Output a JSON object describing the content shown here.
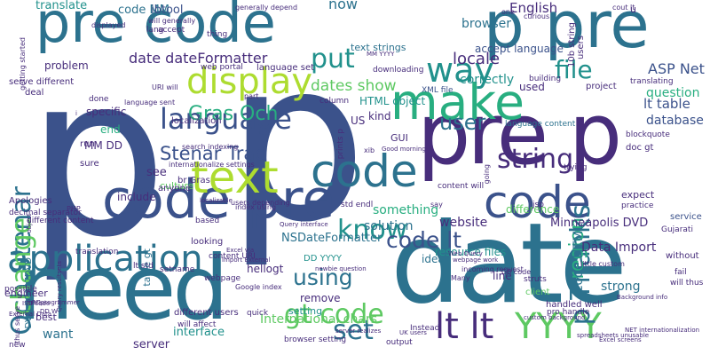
{
  "word_cloud": {
    "background": "#ffffff",
    "palette": [
      "#440154",
      "#472d7b",
      "#3b528b",
      "#2c728e",
      "#21918c",
      "#28ae80",
      "#5ec962",
      "#addc30",
      "#fde725"
    ],
    "words": [
      {
        "text": "p",
        "color": "#3b528b",
        "vertical": false
      },
      {
        "text": "p",
        "color": "#3b528b",
        "vertical": false
      },
      {
        "text": "date",
        "color": "#2c728e",
        "vertical": false
      },
      {
        "text": "need",
        "color": "#2c728e",
        "vertical": false
      },
      {
        "text": "pre code",
        "color": "#2c728e",
        "vertical": false
      },
      {
        "text": "pre p",
        "color": "#472d7b",
        "vertical": false
      },
      {
        "text": "code pre",
        "color": "#3b528b",
        "vertical": false
      },
      {
        "text": "p pre",
        "color": "#2c728e",
        "vertical": false
      },
      {
        "text": "text",
        "color": "#addc30",
        "vertical": false
      },
      {
        "text": "application",
        "color": "#2c728e",
        "vertical": false
      },
      {
        "text": "make",
        "color": "#28ae80",
        "vertical": false
      },
      {
        "text": "display",
        "color": "#addc30",
        "vertical": false
      },
      {
        "text": "language",
        "color": "#3b528b",
        "vertical": false
      },
      {
        "text": "code",
        "color": "#3b528b",
        "vertical": false
      },
      {
        "text": "lt lt",
        "color": "#472d7b",
        "vertical": false
      },
      {
        "text": "YYYY",
        "color": "#5ec962",
        "vertical": false
      },
      {
        "text": "Och Stenar",
        "color": "#2c728e",
        "vertical": true
      },
      {
        "text": "string",
        "color": "#472d7b",
        "vertical": false
      },
      {
        "text": "know",
        "color": "#21918c",
        "vertical": false
      },
      {
        "text": "way",
        "color": "#21918c",
        "vertical": false
      },
      {
        "text": "change",
        "color": "#5ec962",
        "vertical": true
      },
      {
        "text": "p Thanks",
        "color": "#2c728e",
        "vertical": true
      },
      {
        "text": "put",
        "color": "#21918c",
        "vertical": false
      },
      {
        "text": "gt code",
        "color": "#5ec962",
        "vertical": false
      },
      {
        "text": "set",
        "color": "#2c728e",
        "vertical": false
      },
      {
        "text": "code",
        "color": "#2c728e",
        "vertical": false
      },
      {
        "text": "using",
        "color": "#2c728e",
        "vertical": false
      },
      {
        "text": "code lt",
        "color": "#3b528b",
        "vertical": false
      },
      {
        "text": "Gras Och",
        "color": "#28ae80",
        "vertical": false
      },
      {
        "text": "Stenar Trad",
        "color": "#3b528b",
        "vertical": false
      },
      {
        "text": "file",
        "color": "#21918c",
        "vertical": false
      },
      {
        "text": "user",
        "color": "#2c728e",
        "vertical": false
      },
      {
        "text": "region",
        "color": "#28ae80",
        "vertical": true
      },
      {
        "text": "ASP Net",
        "color": "#3b528b",
        "vertical": false
      },
      {
        "text": "lt table",
        "color": "#3b528b",
        "vertical": false
      },
      {
        "text": "date dateFormatter",
        "color": "#472d7b",
        "vertical": false
      },
      {
        "text": "translate",
        "color": "#21918c",
        "vertical": false
      },
      {
        "text": "English",
        "color": "#472d7b",
        "vertical": false
      },
      {
        "text": "locale",
        "color": "#472d7b",
        "vertical": false
      },
      {
        "text": "correctly",
        "color": "#21918c",
        "vertical": false
      },
      {
        "text": "code MM",
        "color": "#2c728e",
        "vertical": false
      },
      {
        "text": "ibtool",
        "color": "#3b528b",
        "vertical": false
      },
      {
        "text": "now",
        "color": "#2c728e",
        "vertical": false
      },
      {
        "text": "browser",
        "color": "#2c728e",
        "vertical": false
      },
      {
        "text": "dates show",
        "color": "#5ec962",
        "vertical": false
      },
      {
        "text": "problem",
        "color": "#472d7b",
        "vertical": false
      },
      {
        "text": "specific",
        "color": "#472d7b",
        "vertical": false
      },
      {
        "text": "end",
        "color": "#28ae80",
        "vertical": false
      },
      {
        "text": "MM DD",
        "color": "#472d7b",
        "vertical": false
      },
      {
        "text": "include",
        "color": "#472d7b",
        "vertical": false
      },
      {
        "text": "br Gras",
        "color": "#472d7b",
        "vertical": false
      },
      {
        "text": "something",
        "color": "#28ae80",
        "vertical": false
      },
      {
        "text": "solution",
        "color": "#2c728e",
        "vertical": false
      },
      {
        "text": "website",
        "color": "#472d7b",
        "vertical": false
      },
      {
        "text": "question",
        "color": "#28ae80",
        "vertical": false
      },
      {
        "text": "database",
        "color": "#3b528b",
        "vertical": false
      },
      {
        "text": "code HTML",
        "color": "#2c728e",
        "vertical": true
      },
      {
        "text": "Minneapolis DVD",
        "color": "#472d7b",
        "vertical": false
      },
      {
        "text": "Data Import",
        "color": "#472d7b",
        "vertical": false
      },
      {
        "text": "NSDateFormatter",
        "color": "#2c728e",
        "vertical": false
      },
      {
        "text": "DD YYYY",
        "color": "#21918c",
        "vertical": false
      },
      {
        "text": "remove",
        "color": "#472d7b",
        "vertical": false
      },
      {
        "text": "setting",
        "color": "#21918c",
        "vertical": false
      },
      {
        "text": "International chars",
        "color": "#5ec962",
        "vertical": false
      },
      {
        "text": "interface",
        "color": "#21918c",
        "vertical": false
      },
      {
        "text": "DVD G2007DVD",
        "color": "#2c728e",
        "vertical": true
      },
      {
        "text": "table gt",
        "color": "#2c728e",
        "vertical": true
      },
      {
        "text": "want",
        "color": "#2c728e",
        "vertical": false
      },
      {
        "text": "server",
        "color": "#472d7b",
        "vertical": false
      },
      {
        "text": "hellogt",
        "color": "#472d7b",
        "vertical": false
      },
      {
        "text": "kind",
        "color": "#472d7b",
        "vertical": false
      },
      {
        "text": "US",
        "color": "#472d7b",
        "vertical": false
      },
      {
        "text": "HTML object",
        "color": "#21918c",
        "vertical": false
      },
      {
        "text": "difference",
        "color": "#5ec962",
        "vertical": false
      },
      {
        "text": "resource files",
        "color": "#21918c",
        "vertical": false
      },
      {
        "text": "strong",
        "color": "#2c728e",
        "vertical": false
      },
      {
        "text": "line",
        "color": "#472d7b",
        "vertical": false
      },
      {
        "text": "idea",
        "color": "#2c728e",
        "vertical": false
      },
      {
        "text": "used",
        "color": "#472d7b",
        "vertical": false
      },
      {
        "text": "see",
        "color": "#472d7b",
        "vertical": false
      },
      {
        "text": "culture",
        "color": "#5ec962",
        "vertical": false
      },
      {
        "text": "anyone",
        "color": "#472d7b",
        "vertical": false
      },
      {
        "text": "done",
        "color": "#472d7b",
        "vertical": false
      },
      {
        "text": "sure",
        "color": "#472d7b",
        "vertical": false
      },
      {
        "text": "localization",
        "color": "#472d7b",
        "vertical": false
      },
      {
        "text": "expect",
        "color": "#472d7b",
        "vertical": false
      },
      {
        "text": "practice",
        "color": "#472d7b",
        "vertical": false
      },
      {
        "text": "doc gt",
        "color": "#472d7b",
        "vertical": false
      },
      {
        "text": "service",
        "color": "#3b528b",
        "vertical": false
      },
      {
        "text": "fail",
        "color": "#472d7b",
        "vertical": false
      },
      {
        "text": "project",
        "color": "#472d7b",
        "vertical": false
      },
      {
        "text": "translating",
        "color": "#472d7b",
        "vertical": false
      },
      {
        "text": "building",
        "color": "#472d7b",
        "vertical": false
      },
      {
        "text": "accept language",
        "color": "#3b528b",
        "vertical": false
      },
      {
        "text": "text strings",
        "color": "#2c728e",
        "vertical": false
      },
      {
        "text": "XML file",
        "color": "#3b528b",
        "vertical": false
      },
      {
        "text": "language content",
        "color": "#2c728e",
        "vertical": false
      },
      {
        "text": "blockquote",
        "color": "#472d7b",
        "vertical": false
      },
      {
        "text": "Gujarati",
        "color": "#472d7b",
        "vertical": false
      },
      {
        "text": "trying",
        "color": "#472d7b",
        "vertical": false
      },
      {
        "text": "quick",
        "color": "#472d7b",
        "vertical": false
      },
      {
        "text": "looking",
        "color": "#472d7b",
        "vertical": false
      },
      {
        "text": "based",
        "color": "#472d7b",
        "vertical": false
      },
      {
        "text": "different users",
        "color": "#472d7b",
        "vertical": false
      },
      {
        "text": "will affect",
        "color": "#472d7b",
        "vertical": false
      },
      {
        "text": "browser setting",
        "color": "#472d7b",
        "vertical": false
      },
      {
        "text": "Instead",
        "color": "#472d7b",
        "vertical": false
      },
      {
        "text": "output",
        "color": "#472d7b",
        "vertical": false
      },
      {
        "text": "client",
        "color": "#5ec962",
        "vertical": false
      },
      {
        "text": "handled well",
        "color": "#472d7b",
        "vertical": false
      },
      {
        "text": "pro handle",
        "color": "#472d7b",
        "vertical": false
      },
      {
        "text": "without",
        "color": "#472d7b",
        "vertical": false
      },
      {
        "text": "will thus",
        "color": "#472d7b",
        "vertical": false
      },
      {
        "text": "struts",
        "color": "#472d7b",
        "vertical": false
      },
      {
        "text": "web portal",
        "color": "#472d7b",
        "vertical": false
      },
      {
        "text": "language set",
        "color": "#472d7b",
        "vertical": false
      },
      {
        "text": "generally depend",
        "color": "#472d7b",
        "vertical": false
      },
      {
        "text": "will generally",
        "color": "#472d7b",
        "vertical": false
      },
      {
        "text": "thing",
        "color": "#472d7b",
        "vertical": false
      },
      {
        "text": "lang",
        "color": "#472d7b",
        "vertical": false
      },
      {
        "text": "accept",
        "color": "#472d7b",
        "vertical": false
      },
      {
        "text": "displayed",
        "color": "#472d7b",
        "vertical": false
      },
      {
        "text": "one",
        "color": "#472d7b",
        "vertical": false
      },
      {
        "text": "curious",
        "color": "#472d7b",
        "vertical": false
      },
      {
        "text": "serve different",
        "color": "#472d7b",
        "vertical": false
      },
      {
        "text": "deal",
        "color": "#472d7b",
        "vertical": false
      },
      {
        "text": "URI will",
        "color": "#472d7b",
        "vertical": false
      },
      {
        "text": "part",
        "color": "#472d7b",
        "vertical": false
      },
      {
        "text": "column",
        "color": "#472d7b",
        "vertical": false
      },
      {
        "text": "downloading",
        "color": "#472d7b",
        "vertical": false
      },
      {
        "text": "cout lt",
        "color": "#472d7b",
        "vertical": false
      },
      {
        "text": "run",
        "color": "#472d7b",
        "vertical": false
      },
      {
        "text": "translation",
        "color": "#472d7b",
        "vertical": false
      },
      {
        "text": "content URI",
        "color": "#472d7b",
        "vertical": false
      },
      {
        "text": "webpage",
        "color": "#472d7b",
        "vertical": false
      },
      {
        "text": "setname",
        "color": "#472d7b",
        "vertical": false
      },
      {
        "text": "Google index",
        "color": "#472d7b",
        "vertical": false
      },
      {
        "text": "lt std",
        "color": "#472d7b",
        "vertical": false
      },
      {
        "text": "users depending",
        "color": "#472d7b",
        "vertical": false
      },
      {
        "text": "PHP",
        "color": "#472d7b",
        "vertical": false
      },
      {
        "text": "decimal separator",
        "color": "#472d7b",
        "vertical": false
      },
      {
        "text": "different content",
        "color": "#472d7b",
        "vertical": false
      },
      {
        "text": "Apologies",
        "color": "#472d7b",
        "vertical": false
      },
      {
        "text": "engineer",
        "color": "#472d7b",
        "vertical": false
      },
      {
        "text": "best",
        "color": "#472d7b",
        "vertical": false
      },
      {
        "text": "new",
        "color": "#472d7b",
        "vertical": false
      },
      {
        "text": "possible",
        "color": "#472d7b",
        "vertical": false
      },
      {
        "text": "en",
        "color": "#472d7b",
        "vertical": false
      },
      {
        "text": "content will",
        "color": "#472d7b",
        "vertical": false
      },
      {
        "text": "say",
        "color": "#472d7b",
        "vertical": false
      },
      {
        "text": "jsp",
        "color": "#472d7b",
        "vertical": false
      },
      {
        "text": "index using",
        "color": "#472d7b",
        "vertical": false
      },
      {
        "text": "std endl",
        "color": "#472d7b",
        "vertical": false
      },
      {
        "text": "Good morning",
        "color": "#472d7b",
        "vertical": false
      },
      {
        "text": "GUI",
        "color": "#472d7b",
        "vertical": false
      },
      {
        "text": "prints p",
        "color": "#472d7b",
        "vertical": true
      },
      {
        "text": "getting started",
        "color": "#472d7b",
        "vertical": true
      },
      {
        "text": "10b string",
        "color": "#472d7b",
        "vertical": true
      },
      {
        "text": "users",
        "color": "#472d7b",
        "vertical": true
      },
      {
        "text": "xib",
        "color": "#472d7b",
        "vertical": false
      },
      {
        "text": "u",
        "color": "#472d7b",
        "vertical": false
      },
      {
        "text": "language sent",
        "color": "#472d7b",
        "vertical": false
      },
      {
        "text": "search indexing",
        "color": "#472d7b",
        "vertical": false
      },
      {
        "text": "internationalize settings",
        "color": "#472d7b",
        "vertical": false
      },
      {
        "text": "Excel via",
        "color": "#472d7b",
        "vertical": false
      },
      {
        "text": "Import External",
        "color": "#472d7b",
        "vertical": false
      },
      {
        "text": "newbie question",
        "color": "#472d7b",
        "vertical": false
      },
      {
        "text": "custom background",
        "color": "#472d7b",
        "vertical": false
      },
      {
        "text": "spreadsheets unusable",
        "color": "#472d7b",
        "vertical": false
      },
      {
        "text": "NET internationalization",
        "color": "#472d7b",
        "vertical": false
      },
      {
        "text": "Excel screens",
        "color": "#472d7b",
        "vertical": false
      },
      {
        "text": "Background info",
        "color": "#472d7b",
        "vertical": false
      },
      {
        "text": "little custom",
        "color": "#472d7b",
        "vertical": false
      },
      {
        "text": "localizable",
        "color": "#472d7b",
        "vertical": false
      },
      {
        "text": "UK users",
        "color": "#472d7b",
        "vertical": false
      },
      {
        "text": "Many",
        "color": "#472d7b",
        "vertical": false
      },
      {
        "text": "incoming request",
        "color": "#472d7b",
        "vertical": false
      },
      {
        "text": "Web Query",
        "color": "#472d7b",
        "vertical": false
      },
      {
        "text": "G8 code",
        "color": "#472d7b",
        "vertical": false
      },
      {
        "text": "DD W",
        "color": "#472d7b",
        "vertical": false
      },
      {
        "text": "MM YYYY",
        "color": "#472d7b",
        "vertical": false
      },
      {
        "text": "first programmer",
        "color": "#472d7b",
        "vertical": false
      },
      {
        "text": "ISO code",
        "color": "#472d7b",
        "vertical": false
      },
      {
        "text": "thus serve",
        "color": "#472d7b",
        "vertical": true
      },
      {
        "text": "Query resultsets",
        "color": "#472d7b",
        "vertical": true
      },
      {
        "text": "object",
        "color": "#472d7b",
        "vertical": true
      },
      {
        "text": "going",
        "color": "#472d7b",
        "vertical": true
      },
      {
        "text": "webpage work",
        "color": "#472d7b",
        "vertical": false
      },
      {
        "text": "Query interface",
        "color": "#472d7b",
        "vertical": false
      },
      {
        "text": "External Data",
        "color": "#472d7b",
        "vertical": false
      },
      {
        "text": "server realizes",
        "color": "#472d7b",
        "vertical": false
      },
      {
        "text": "i",
        "color": "#472d7b",
        "vertical": false
      }
    ]
  }
}
